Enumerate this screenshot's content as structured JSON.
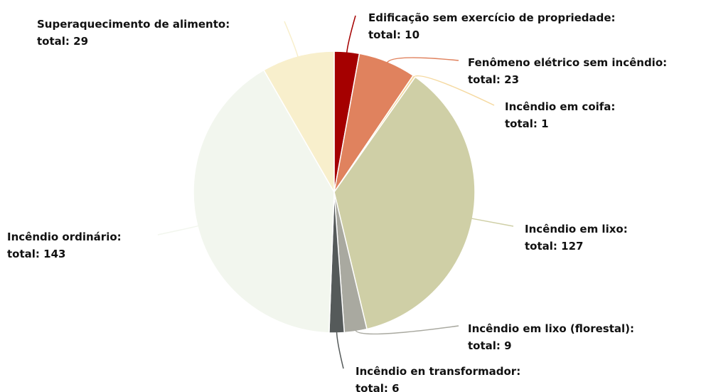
{
  "chart_data": {
    "type": "pie",
    "categories": [
      "Edificação sem exercício de propriedade:",
      "Fenômeno elétrico sem incêndio:",
      "Incêndio em coifa:",
      "Incêndio em lixo:",
      "Incêndio em lixo (florestal):",
      "Incêndio en transformador:",
      "Incêndio ordinário:",
      "Superaquecimento de alimento:"
    ],
    "values": [
      10,
      23,
      1,
      127,
      9,
      6,
      143,
      29
    ],
    "value_labels": [
      "total: 10",
      "total: 23",
      "total: 1",
      "total: 127",
      "total: 9",
      "total: 6",
      "total: 143",
      "total: 29"
    ],
    "colors": [
      "#a50000",
      "#e0825e",
      "#f5d9a0",
      "#cfcfa6",
      "#a9a9a0",
      "#555a5a",
      "#f2f6ee",
      "#f8efcc"
    ]
  }
}
